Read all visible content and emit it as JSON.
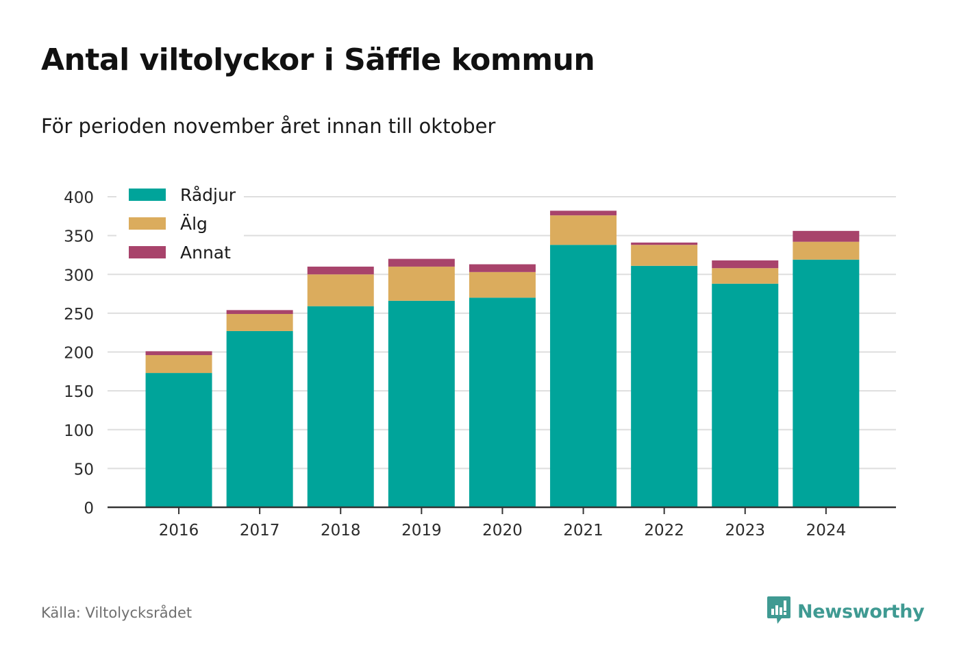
{
  "title": "Antal viltolyckor i Säffle kommun",
  "subtitle": "För perioden november året innan till oktober",
  "source": "Källa: Viltolycksrådet",
  "brand": {
    "name": "Newsworthy",
    "icon": "newsworthy-logo-icon",
    "color": "#3f9a92"
  },
  "chart_data": {
    "type": "bar",
    "stacked": true,
    "categories": [
      "2016",
      "2017",
      "2018",
      "2019",
      "2020",
      "2021",
      "2022",
      "2023",
      "2024"
    ],
    "series": [
      {
        "name": "Rådjur",
        "color": "#00a49a",
        "values": [
          173,
          227,
          259,
          266,
          270,
          338,
          311,
          288,
          319
        ]
      },
      {
        "name": "Älg",
        "color": "#dbac5d",
        "values": [
          23,
          22,
          41,
          44,
          33,
          38,
          27,
          20,
          23
        ]
      },
      {
        "name": "Annat",
        "color": "#a8436b",
        "values": [
          5,
          5,
          10,
          10,
          10,
          6,
          3,
          10,
          14
        ]
      }
    ],
    "y_ticks": [
      0,
      50,
      100,
      150,
      200,
      250,
      300,
      350,
      400
    ],
    "ylim": [
      0,
      400
    ],
    "grid": true,
    "legend_position": "top-left"
  }
}
